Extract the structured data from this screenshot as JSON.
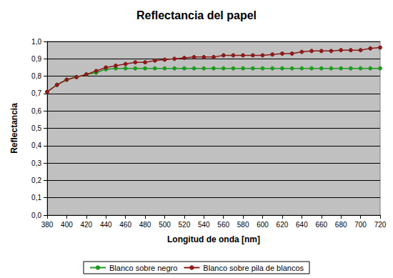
{
  "chart_data": {
    "type": "line",
    "title": "Reflectancia del papel",
    "x_label": "Longitud de onda [nm]",
    "y_label": "Reflectancia",
    "x": [
      380,
      390,
      400,
      410,
      420,
      430,
      440,
      450,
      460,
      470,
      480,
      490,
      500,
      510,
      520,
      530,
      540,
      550,
      560,
      570,
      580,
      590,
      600,
      610,
      620,
      630,
      640,
      650,
      660,
      670,
      680,
      690,
      700,
      710,
      720
    ],
    "series": [
      {
        "name": "Blanco sobre negro",
        "color": "#1e9a1e",
        "marker": "circle",
        "line_style": "solid",
        "values": [
          0.71,
          0.75,
          0.78,
          0.795,
          0.81,
          0.82,
          0.84,
          0.845,
          0.845,
          0.845,
          0.845,
          0.845,
          0.845,
          0.845,
          0.845,
          0.845,
          0.845,
          0.845,
          0.845,
          0.845,
          0.845,
          0.845,
          0.845,
          0.845,
          0.845,
          0.845,
          0.845,
          0.845,
          0.845,
          0.845,
          0.845,
          0.845,
          0.845,
          0.845,
          0.845
        ]
      },
      {
        "name": "Blanco sobre pila de blancos",
        "color": "#8b1a1a",
        "marker": "circle",
        "line_style": "solid",
        "values": [
          0.71,
          0.75,
          0.78,
          0.795,
          0.81,
          0.83,
          0.85,
          0.86,
          0.87,
          0.88,
          0.88,
          0.89,
          0.895,
          0.9,
          0.905,
          0.91,
          0.91,
          0.91,
          0.92,
          0.92,
          0.92,
          0.92,
          0.92,
          0.925,
          0.93,
          0.93,
          0.94,
          0.945,
          0.945,
          0.945,
          0.95,
          0.95,
          0.95,
          0.96,
          0.965
        ]
      }
    ],
    "xlim": [
      380,
      720
    ],
    "xticks": [
      380,
      400,
      420,
      440,
      460,
      480,
      500,
      520,
      540,
      560,
      580,
      600,
      620,
      640,
      660,
      680,
      700,
      720
    ],
    "ylim": [
      0,
      1
    ],
    "yticks": [
      {
        "value": 0,
        "label": "0,0"
      },
      {
        "value": 0.1,
        "label": "0,1"
      },
      {
        "value": 0.2,
        "label": "0,2"
      },
      {
        "value": 0.3,
        "label": "0,3"
      },
      {
        "value": 0.4,
        "label": "0,4"
      },
      {
        "value": 0.5,
        "label": "0,5"
      },
      {
        "value": 0.6,
        "label": "0,6"
      },
      {
        "value": 0.7,
        "label": "0,7"
      },
      {
        "value": 0.8,
        "label": "0,8"
      },
      {
        "value": 0.9,
        "label": "0,9"
      },
      {
        "value": 1,
        "label": "1,0"
      }
    ],
    "grid": true,
    "legend": "bottom"
  }
}
